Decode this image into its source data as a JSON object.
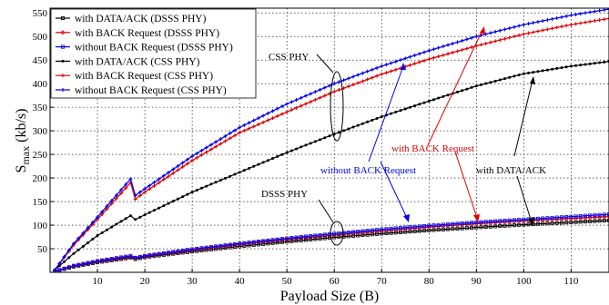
{
  "chart_data": {
    "type": "line",
    "xlabel": "Payload Size (B)",
    "ylabel_main": "S",
    "ylabel_sub": "max",
    "ylabel_unit": " (kb/s)",
    "xlim": [
      0,
      118
    ],
    "ylim": [
      0,
      560
    ],
    "xticks": [
      10,
      20,
      30,
      40,
      50,
      60,
      70,
      80,
      90,
      100,
      110
    ],
    "yticks": [
      50,
      100,
      150,
      200,
      250,
      300,
      350,
      400,
      450,
      500,
      550
    ],
    "grid": true,
    "legend_position": "top-left",
    "series": [
      {
        "name": "with DATA/ACK (DSSS PHY)",
        "color": "#000000",
        "marker": "square",
        "x": [
          1,
          5,
          10,
          17,
          18,
          20,
          30,
          40,
          50,
          60,
          70,
          80,
          90,
          100,
          110,
          118
        ],
        "y": [
          2,
          12,
          21,
          31,
          28,
          32,
          44,
          55,
          65,
          74,
          82,
          89,
          95,
          101,
          106,
          110
        ]
      },
      {
        "name": "with BACK Request (DSSS PHY)",
        "color": "#e00000",
        "marker": "diamond",
        "x": [
          1,
          5,
          10,
          17,
          18,
          20,
          30,
          40,
          50,
          60,
          70,
          80,
          90,
          100,
          110,
          118
        ],
        "y": [
          2,
          13,
          23,
          33,
          30,
          34,
          47,
          59,
          70,
          79,
          88,
          96,
          103,
          109,
          114,
          118
        ]
      },
      {
        "name": "without BACK Request (DSSS PHY)",
        "color": "#0000ee",
        "marker": "square",
        "x": [
          1,
          5,
          10,
          17,
          18,
          20,
          30,
          40,
          50,
          60,
          70,
          80,
          90,
          100,
          110,
          118
        ],
        "y": [
          2,
          14,
          24,
          35,
          31,
          35,
          49,
          61,
          72,
          82,
          91,
          99,
          106,
          112,
          118,
          123
        ]
      },
      {
        "name": "with DATA/ACK (CSS PHY)",
        "color": "#000000",
        "marker": "dot",
        "x": [
          1,
          5,
          10,
          17,
          18,
          20,
          30,
          40,
          50,
          60,
          70,
          80,
          90,
          100,
          110,
          118
        ],
        "y": [
          5,
          40,
          78,
          120,
          112,
          122,
          170,
          212,
          254,
          293,
          330,
          363,
          395,
          421,
          437,
          447
        ]
      },
      {
        "name": "with BACK Request (CSS PHY)",
        "color": "#e00000",
        "marker": "star",
        "x": [
          1,
          5,
          10,
          17,
          18,
          20,
          30,
          40,
          50,
          60,
          70,
          80,
          90,
          100,
          110,
          118
        ],
        "y": [
          5,
          58,
          112,
          190,
          155,
          170,
          237,
          296,
          340,
          383,
          420,
          452,
          480,
          505,
          525,
          538
        ]
      },
      {
        "name": "without BACK Request (CSS PHY)",
        "color": "#0000ee",
        "marker": "star",
        "x": [
          1,
          5,
          10,
          17,
          18,
          20,
          30,
          40,
          50,
          60,
          70,
          80,
          90,
          100,
          110,
          118
        ],
        "y": [
          5,
          61,
          117,
          198,
          163,
          177,
          246,
          307,
          357,
          400,
          437,
          470,
          500,
          525,
          545,
          558
        ]
      }
    ],
    "annotations": [
      {
        "text": "CSS PHY",
        "color": "#000000"
      },
      {
        "text": "DSSS PHY",
        "color": "#000000"
      },
      {
        "text": "with BACK Request",
        "color": "#e00000"
      },
      {
        "text": "without BACK Request",
        "color": "#0000ee"
      },
      {
        "text": "with DATA/ACK",
        "color": "#000000"
      }
    ]
  }
}
